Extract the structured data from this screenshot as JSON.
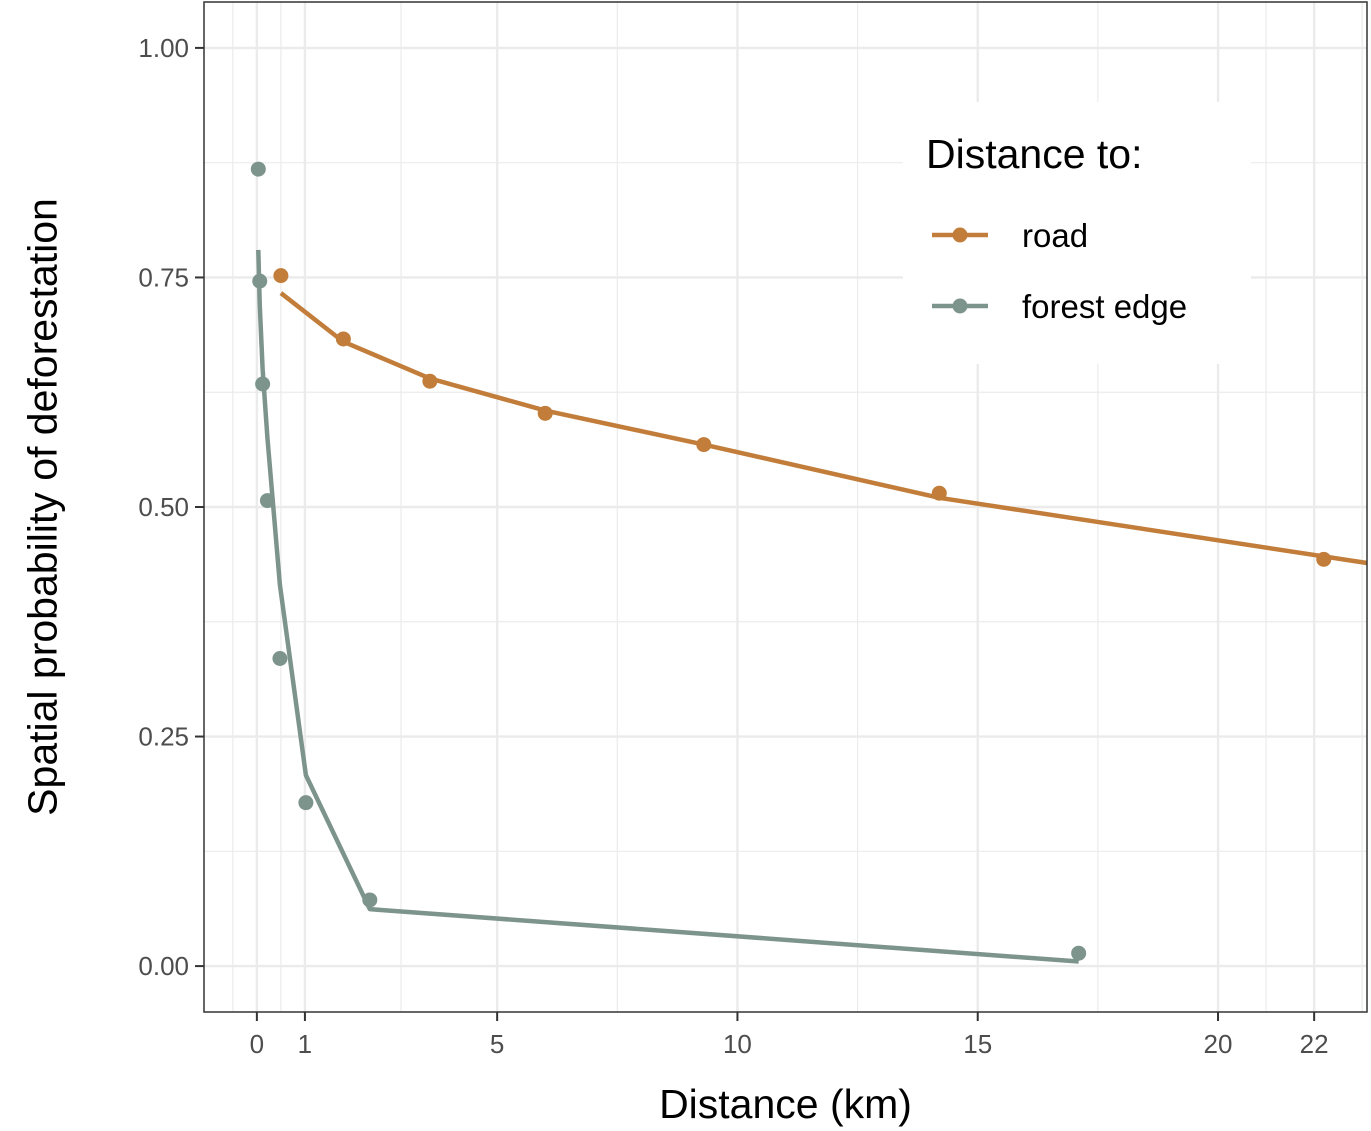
{
  "chart_data": {
    "type": "line",
    "xlabel": "Distance (km)",
    "ylabel": "Spatial probability of deforestation",
    "x_ticks": [
      0,
      1,
      5,
      10,
      15,
      20,
      22
    ],
    "x_tick_labels": [
      "0",
      "1",
      "5",
      "10",
      "15",
      "20",
      "22"
    ],
    "y_ticks": [
      0,
      0.25,
      0.5,
      0.75,
      1.0
    ],
    "y_tick_labels": [
      "0.00",
      "0.25",
      "0.50",
      "0.75",
      "1.00"
    ],
    "xlim": [
      -1.1,
      23.1
    ],
    "ylim": [
      -0.05,
      1.05
    ],
    "grid": true,
    "legend": {
      "title": "Distance to:",
      "position": "top-right"
    },
    "series": [
      {
        "name": "road",
        "color": "#C27D3A",
        "points": {
          "x": [
            0.5,
            1.8,
            3.6,
            6.0,
            9.3,
            14.2,
            22.2
          ],
          "y": [
            0.752,
            0.683,
            0.637,
            0.602,
            0.568,
            0.515,
            0.443
          ]
        },
        "fit": {
          "x": [
            0.5,
            1.8,
            3.6,
            6.0,
            9.3,
            14.2,
            23.1
          ],
          "y": [
            0.733,
            0.68,
            0.64,
            0.605,
            0.568,
            0.51,
            0.439
          ]
        }
      },
      {
        "name": "forest edge",
        "color": "#7D948C",
        "points": {
          "x": [
            0.03,
            0.06,
            0.12,
            0.22,
            0.48,
            1.02,
            2.35,
            17.1
          ],
          "y": [
            0.868,
            0.746,
            0.634,
            0.507,
            0.335,
            0.178,
            0.072,
            0.014
          ]
        },
        "fit": {
          "x": [
            0.03,
            0.06,
            0.12,
            0.22,
            0.48,
            1.02,
            2.35,
            17.1
          ],
          "y": [
            0.78,
            0.72,
            0.65,
            0.575,
            0.415,
            0.208,
            0.062,
            0.005
          ]
        }
      }
    ]
  }
}
